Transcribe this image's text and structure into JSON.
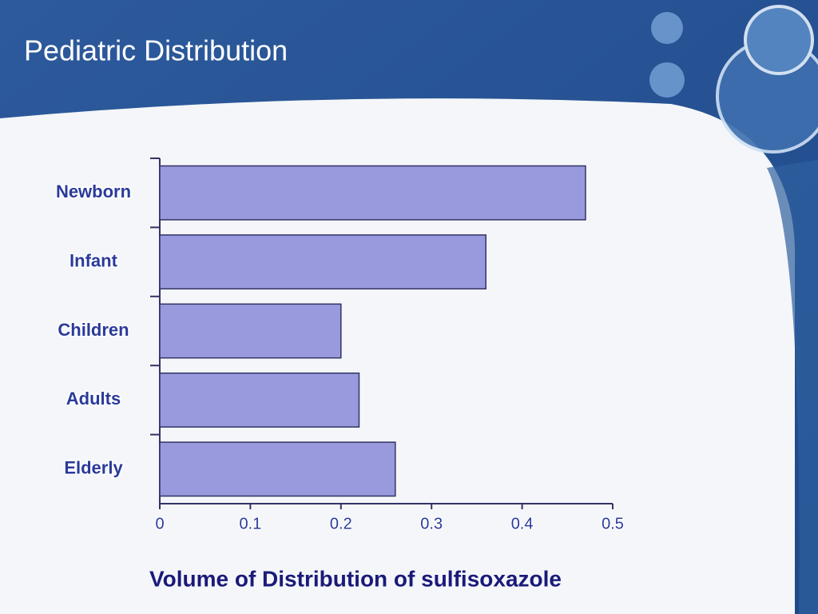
{
  "chart_data": {
    "type": "hbar",
    "title": "Pediatric Distribution",
    "categories": [
      "Newborn",
      "Infant",
      "Children",
      "Adults",
      "Elderly"
    ],
    "values": [
      0.47,
      0.36,
      0.2,
      0.22,
      0.26
    ],
    "color": "#9999dd",
    "xlabel": "Volume of Distribution of sulfisoxazole",
    "xlim": [
      0,
      0.5
    ],
    "xticks": [
      0,
      0.1,
      0.2,
      0.3,
      0.4,
      0.5
    ],
    "grid": false
  }
}
